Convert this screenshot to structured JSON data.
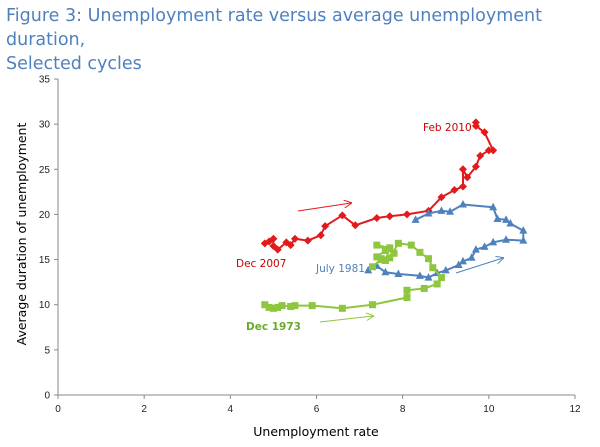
{
  "title_line1": "Figure 3: Unemployment rate versus average unemployment duration,",
  "title_line2": "Selected cycles",
  "chart_data": {
    "type": "scatter",
    "xlabel": "Unemployment rate",
    "ylabel": "Average duration of unemployment",
    "xlim": [
      0,
      12
    ],
    "ylim": [
      0,
      35
    ],
    "xticks": [
      "0",
      "2",
      "4",
      "6",
      "8",
      "10",
      "12"
    ],
    "yticks": [
      "0",
      "5",
      "10",
      "15",
      "20",
      "25",
      "30",
      "35"
    ],
    "grid": false,
    "series": [
      {
        "name": "Dec 2007",
        "color": "#e31a1c",
        "marker": "diamond",
        "points": [
          [
            4.8,
            16.8
          ],
          [
            4.9,
            17.0
          ],
          [
            5.0,
            17.3
          ],
          [
            5.0,
            16.5
          ],
          [
            5.1,
            16.1
          ],
          [
            5.3,
            16.9
          ],
          [
            5.4,
            16.6
          ],
          [
            5.5,
            17.3
          ],
          [
            5.8,
            17.1
          ],
          [
            6.1,
            17.7
          ],
          [
            6.2,
            18.7
          ],
          [
            6.6,
            19.9
          ],
          [
            6.9,
            18.8
          ],
          [
            7.4,
            19.6
          ],
          [
            7.7,
            19.8
          ],
          [
            8.1,
            20.0
          ],
          [
            8.6,
            20.4
          ],
          [
            8.9,
            21.9
          ],
          [
            9.2,
            22.7
          ],
          [
            9.4,
            23.1
          ],
          [
            9.4,
            25.0
          ],
          [
            9.5,
            24.1
          ],
          [
            9.7,
            25.3
          ],
          [
            9.8,
            26.5
          ],
          [
            10.0,
            27.1
          ],
          [
            10.1,
            27.1
          ],
          [
            9.9,
            29.1
          ],
          [
            9.7,
            29.8
          ],
          [
            9.7,
            30.2
          ]
        ]
      },
      {
        "name": "July 1981",
        "color": "#4f81bd",
        "marker": "triangle",
        "points": [
          [
            7.2,
            13.8
          ],
          [
            7.4,
            14.3
          ],
          [
            7.6,
            13.6
          ],
          [
            7.9,
            13.4
          ],
          [
            8.4,
            13.2
          ],
          [
            8.6,
            13.0
          ],
          [
            8.8,
            13.5
          ],
          [
            9.0,
            13.8
          ],
          [
            9.3,
            14.4
          ],
          [
            9.4,
            14.8
          ],
          [
            9.6,
            15.2
          ],
          [
            9.7,
            16.1
          ],
          [
            9.9,
            16.4
          ],
          [
            10.1,
            16.9
          ],
          [
            10.4,
            17.2
          ],
          [
            10.8,
            17.1
          ],
          [
            10.8,
            18.2
          ],
          [
            10.5,
            19.0
          ],
          [
            10.4,
            19.4
          ],
          [
            10.2,
            19.5
          ],
          [
            10.1,
            20.8
          ],
          [
            9.4,
            21.1
          ],
          [
            9.1,
            20.3
          ],
          [
            8.9,
            20.4
          ],
          [
            8.6,
            20.1
          ],
          [
            8.3,
            19.4
          ]
        ]
      },
      {
        "name": "Dec 1973",
        "color": "#8ec63f",
        "marker": "square",
        "points": [
          [
            4.8,
            10.0
          ],
          [
            4.9,
            9.7
          ],
          [
            5.0,
            9.6
          ],
          [
            5.1,
            9.7
          ],
          [
            5.2,
            9.9
          ],
          [
            5.4,
            9.8
          ],
          [
            5.5,
            9.9
          ],
          [
            5.9,
            9.9
          ],
          [
            6.6,
            9.6
          ],
          [
            7.3,
            10.0
          ],
          [
            8.1,
            10.8
          ],
          [
            8.1,
            11.6
          ],
          [
            8.5,
            11.8
          ],
          [
            8.8,
            12.3
          ],
          [
            8.9,
            13.0
          ],
          [
            8.7,
            14.1
          ],
          [
            8.6,
            15.1
          ],
          [
            8.4,
            15.8
          ],
          [
            8.2,
            16.6
          ],
          [
            7.9,
            16.8
          ],
          [
            7.7,
            15.2
          ],
          [
            7.6,
            14.9
          ],
          [
            7.5,
            15.1
          ],
          [
            7.4,
            15.3
          ],
          [
            7.6,
            16.0
          ],
          [
            7.7,
            16.3
          ],
          [
            7.4,
            16.6
          ],
          [
            7.8,
            15.7
          ],
          [
            7.5,
            15.0
          ],
          [
            7.3,
            14.2
          ]
        ]
      }
    ],
    "annotations": [
      {
        "text": "Feb 2010",
        "color": "#cc0000"
      },
      {
        "text": "Dec 2007",
        "color": "#cc0000"
      },
      {
        "text": "July 1981",
        "color": "#4f81bd"
      },
      {
        "text": "Dec 1973",
        "color": "#6aaa2a"
      }
    ]
  }
}
